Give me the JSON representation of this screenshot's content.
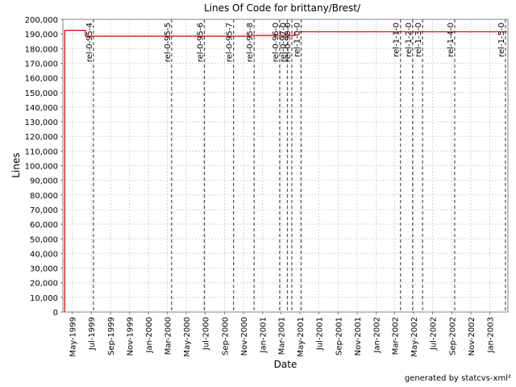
{
  "chart_data": {
    "type": "line",
    "title": "Lines Of Code for brittany/Brest/",
    "xlabel": "Date",
    "ylabel": "Lines",
    "xlim": [
      "1999-04-01",
      "2003-02-28"
    ],
    "ylim": [
      0,
      200000
    ],
    "grid": true,
    "y_ticks": [
      0,
      10000,
      20000,
      30000,
      40000,
      50000,
      60000,
      70000,
      80000,
      90000,
      100000,
      110000,
      120000,
      130000,
      140000,
      150000,
      160000,
      170000,
      180000,
      190000,
      200000
    ],
    "y_tick_labels": [
      "0",
      "10,000",
      "20,000",
      "30,000",
      "40,000",
      "50,000",
      "60,000",
      "70,000",
      "80,000",
      "90,000",
      "100,000",
      "110,000",
      "120,000",
      "130,000",
      "140,000",
      "150,000",
      "160,000",
      "170,000",
      "180,000",
      "190,000",
      "200,000"
    ],
    "x_ticks": [
      {
        "date": "1999-05-01",
        "label": "May-1999"
      },
      {
        "date": "1999-07-01",
        "label": "Jul-1999"
      },
      {
        "date": "1999-09-01",
        "label": "Sep-1999"
      },
      {
        "date": "1999-11-01",
        "label": "Nov-1999"
      },
      {
        "date": "2000-01-01",
        "label": "Jan-2000"
      },
      {
        "date": "2000-03-01",
        "label": "Mar-2000"
      },
      {
        "date": "2000-05-01",
        "label": "May-2000"
      },
      {
        "date": "2000-07-01",
        "label": "Jul-2000"
      },
      {
        "date": "2000-09-01",
        "label": "Sep-2000"
      },
      {
        "date": "2000-11-01",
        "label": "Nov-2000"
      },
      {
        "date": "2001-01-01",
        "label": "Jan-2001"
      },
      {
        "date": "2001-03-01",
        "label": "Mar-2001"
      },
      {
        "date": "2001-05-01",
        "label": "May-2001"
      },
      {
        "date": "2001-07-01",
        "label": "Jul-2001"
      },
      {
        "date": "2001-09-01",
        "label": "Sep-2001"
      },
      {
        "date": "2001-11-01",
        "label": "Nov-2001"
      },
      {
        "date": "2002-01-01",
        "label": "Jan-2002"
      },
      {
        "date": "2002-03-01",
        "label": "Mar-2002"
      },
      {
        "date": "2002-05-01",
        "label": "May-2002"
      },
      {
        "date": "2002-07-01",
        "label": "Jul-2002"
      },
      {
        "date": "2002-09-01",
        "label": "Sep-2002"
      },
      {
        "date": "2002-11-01",
        "label": "Nov-2002"
      },
      {
        "date": "2003-01-01",
        "label": "Jan-2003"
      }
    ],
    "series": [
      {
        "color": "#cc0000",
        "step": true,
        "points": [
          {
            "x": "1999-04-07",
            "y": 0
          },
          {
            "x": "1999-04-07",
            "y": 192500
          },
          {
            "x": "1999-06-12",
            "y": 188500
          },
          {
            "x": "2000-11-20",
            "y": 189000
          },
          {
            "x": "2001-03-01",
            "y": 189000
          },
          {
            "x": "2001-04-15",
            "y": 191500
          },
          {
            "x": "2003-02-25",
            "y": 191500
          }
        ]
      }
    ],
    "markers": [
      {
        "date": "1999-07-08",
        "label": "rel-0-95-4"
      },
      {
        "date": "2000-03-15",
        "label": "rel-0-95-5"
      },
      {
        "date": "2000-06-28",
        "label": "rel-0-95-6"
      },
      {
        "date": "2000-09-30",
        "label": "rel-0-95-7"
      },
      {
        "date": "2000-12-05",
        "label": "rel-0-95-8"
      },
      {
        "date": "2001-02-25",
        "label": "rel-0-96-0"
      },
      {
        "date": "2001-03-22",
        "label": "rel-0-97-0"
      },
      {
        "date": "2001-04-05",
        "label": "rel-0-98-0"
      },
      {
        "date": "2001-05-05",
        "label": "rel-1-0-0"
      },
      {
        "date": "2002-03-20",
        "label": "rel-1-1-0"
      },
      {
        "date": "2002-04-28",
        "label": "rel-1-2-0"
      },
      {
        "date": "2002-05-30",
        "label": "rel-1-3-0"
      },
      {
        "date": "2002-09-10",
        "label": "rel-1-4-0"
      },
      {
        "date": "2003-02-20",
        "label": "rel-1-5-0"
      }
    ]
  },
  "footer": {
    "credit": "generated by statcvs-xml²"
  }
}
